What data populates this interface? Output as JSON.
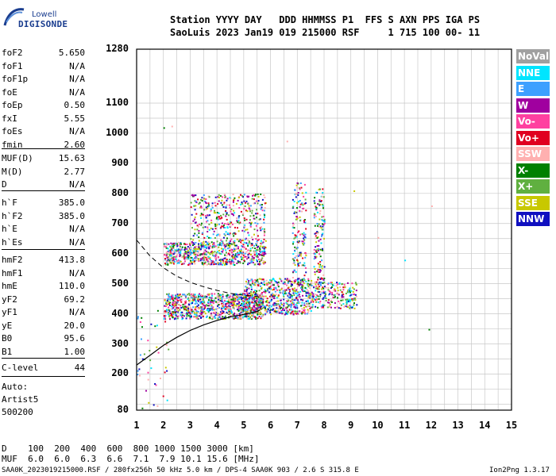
{
  "logo": {
    "top": "Lowell",
    "bottom": "DIGISONDE"
  },
  "header": {
    "line1": "Station YYYY DAY   DDD HHMMSS P1  FFS S AXN PPS IGA PS",
    "line2": "SaoLuis 2023 Jan19 019 215000 RSF     1 715 100 00- 11"
  },
  "params_group1": [
    {
      "name": "foF2",
      "value": "5.650"
    },
    {
      "name": "foF1",
      "value": "N/A"
    },
    {
      "name": "foF1p",
      "value": "N/A"
    },
    {
      "name": "foE",
      "value": "N/A"
    },
    {
      "name": "foEp",
      "value": "0.50"
    },
    {
      "name": "fxI",
      "value": "5.55"
    },
    {
      "name": "foEs",
      "value": "N/A"
    },
    {
      "name": "fmin",
      "value": "2.60"
    }
  ],
  "params_group2": [
    {
      "name": "MUF(D)",
      "value": "15.63"
    },
    {
      "name": "M(D)",
      "value": "2.77"
    },
    {
      "name": "D",
      "value": "N/A"
    }
  ],
  "params_group3": [
    {
      "name": "h`F",
      "value": "385.0"
    },
    {
      "name": "h`F2",
      "value": "385.0"
    },
    {
      "name": "h`E",
      "value": "N/A"
    },
    {
      "name": "h`Es",
      "value": "N/A"
    }
  ],
  "params_group4": [
    {
      "name": "hmF2",
      "value": "413.8"
    },
    {
      "name": "hmF1",
      "value": "N/A"
    },
    {
      "name": "hmE",
      "value": "110.0"
    },
    {
      "name": "yF2",
      "value": "69.2"
    },
    {
      "name": "yF1",
      "value": "N/A"
    },
    {
      "name": "yE",
      "value": "20.0"
    },
    {
      "name": "B0",
      "value": "95.6"
    },
    {
      "name": "B1",
      "value": "1.00"
    }
  ],
  "clevel": {
    "name": "C-level",
    "value": "44"
  },
  "auto": {
    "line1": "Auto:",
    "line2": "Artist5",
    "line3": "500200"
  },
  "legend": [
    {
      "label": "NoVal",
      "color": "#a0a0a0"
    },
    {
      "label": "NNE",
      "color": "#00e5ff"
    },
    {
      "label": "E",
      "color": "#3da0ff"
    },
    {
      "label": "W",
      "color": "#a0009f"
    },
    {
      "label": "Vo-",
      "color": "#ff40a0"
    },
    {
      "label": "Vo+",
      "color": "#e00020"
    },
    {
      "label": "SSW",
      "color": "#ffb0b0"
    },
    {
      "label": "X-",
      "color": "#008000"
    },
    {
      "label": "X+",
      "color": "#60b040"
    },
    {
      "label": "SSE",
      "color": "#c8c800"
    },
    {
      "label": "NNW",
      "color": "#1010c0"
    }
  ],
  "bottom_table": {
    "line1": "D    100  200  400  600  800 1000 1500 3000 [km]",
    "line2": "MUF  6.0  6.0  6.3  6.6  7.1  7.9 10.1 15.6 [MHz]"
  },
  "footer": {
    "left": "SAA0K_2023019215000.RSF / 280fx256h 50 kHz 5.0 km / DPS-4 SAA0K 903 / 2.6 S 315.8 E",
    "right": "Ion2Png 1.3.17"
  },
  "chart_data": {
    "type": "scatter",
    "x_ticks": [
      "1",
      "2",
      "3",
      "4",
      "5",
      "6",
      "7",
      "8",
      "9",
      "10",
      "11",
      "12",
      "13",
      "14",
      "15"
    ],
    "y_ticks": [
      "1280",
      "1100",
      "1000",
      "900",
      "800",
      "700",
      "600",
      "500",
      "400",
      "300",
      "200",
      "80"
    ],
    "xlim": [
      1,
      15
    ],
    "ylim": [
      80,
      1280
    ],
    "y_axis_compressed_above": 1100,
    "grid": true,
    "legend_placement": "right",
    "profile_curve": {
      "x": [
        1.0,
        1.5,
        2.0,
        2.5,
        3.0,
        3.5,
        4.0,
        4.5,
        5.0,
        5.5,
        5.6
      ],
      "y": [
        230,
        262,
        295,
        322,
        345,
        363,
        378,
        390,
        398,
        408,
        413
      ]
    },
    "dashed_curve": {
      "x": [
        1.0,
        1.5,
        2.0,
        2.5,
        3.0,
        3.5,
        4.0,
        4.5,
        5.0,
        5.5,
        5.6
      ],
      "y": [
        645,
        592,
        553,
        525,
        505,
        490,
        478,
        468,
        462,
        458,
        455
      ]
    },
    "echo_regions": [
      {
        "name": "F-trace-low",
        "x": [
          2.0,
          5.7
        ],
        "y": [
          385,
          470
        ]
      },
      {
        "name": "F-trace-mid",
        "x": [
          5.0,
          7.5
        ],
        "y": [
          400,
          520
        ]
      },
      {
        "name": "F-trace-high",
        "x": [
          7.5,
          9.2
        ],
        "y": [
          420,
          510
        ]
      },
      {
        "name": "second-hop",
        "x": [
          2.0,
          5.8
        ],
        "y": [
          565,
          640
        ]
      },
      {
        "name": "multi-hop-spread",
        "x": [
          3.0,
          5.8
        ],
        "y": [
          640,
          800
        ]
      },
      {
        "name": "vertical-streak-7",
        "x": [
          6.8,
          7.3
        ],
        "y": [
          500,
          840
        ]
      },
      {
        "name": "vertical-streak-8",
        "x": [
          7.6,
          8.0
        ],
        "y": [
          500,
          820
        ]
      },
      {
        "name": "low-frequency-sparse",
        "x": [
          1.0,
          2.2
        ],
        "y": [
          80,
          420
        ]
      }
    ],
    "isolated_points": [
      {
        "x": 2.0,
        "y": 1020
      },
      {
        "x": 2.3,
        "y": 1025
      },
      {
        "x": 6.6,
        "y": 975
      },
      {
        "x": 10.0,
        "y": 655
      },
      {
        "x": 12.0,
        "y": 760
      },
      {
        "x": 11.9,
        "y": 350
      },
      {
        "x": 11.0,
        "y": 580
      },
      {
        "x": 9.1,
        "y": 810
      }
    ]
  }
}
